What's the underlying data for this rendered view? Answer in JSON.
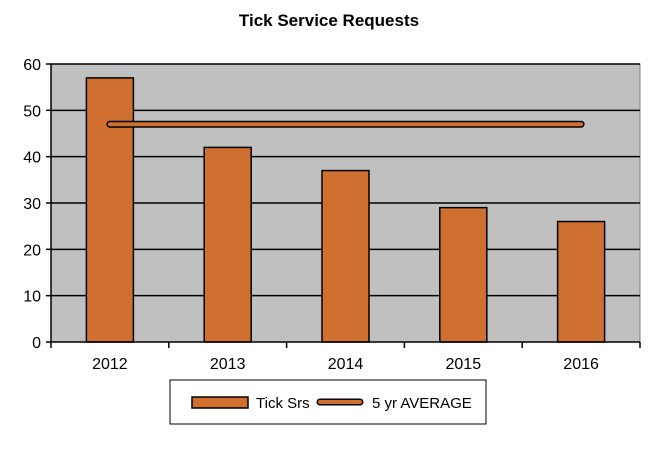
{
  "chart_data": {
    "type": "bar",
    "title": "Tick Service Requests",
    "categories": [
      "2012",
      "2013",
      "2014",
      "2015",
      "2016"
    ],
    "series": [
      {
        "name": "Tick Srs",
        "type": "bar",
        "values": [
          57,
          42,
          37,
          29,
          26
        ]
      },
      {
        "name": "5 yr AVERAGE",
        "type": "line",
        "values": [
          47,
          47,
          47,
          47,
          47
        ]
      }
    ],
    "xlabel": "",
    "ylabel": "",
    "ylim": [
      0,
      60
    ],
    "yticks": [
      0,
      10,
      20,
      30,
      40,
      50,
      60
    ],
    "grid": true,
    "legend_position": "bottom",
    "colors": {
      "bar": "#d07030",
      "line": "#d07030",
      "plot_background": "#c0c0c0",
      "gridline": "#000000"
    }
  }
}
